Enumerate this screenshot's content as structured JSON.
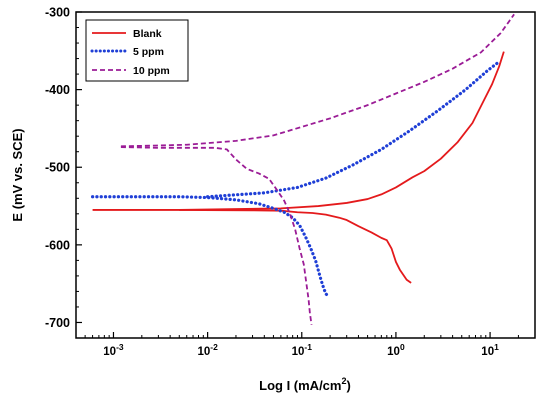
{
  "chart_data": {
    "type": "line",
    "title": "",
    "xlabel": "Log I (mA/cm",
    "xlabel_sup": "2",
    "xlabel_end": ")",
    "ylabel": "E (mV vs. SCE)",
    "x_scale": "log",
    "xlim": [
      0.0004,
      30
    ],
    "ylim": [
      -720,
      -300
    ],
    "x_ticks": [
      {
        "value": 0.001,
        "base": "10",
        "exp": "-3"
      },
      {
        "value": 0.01,
        "base": "10",
        "exp": "-2"
      },
      {
        "value": 0.1,
        "base": "10",
        "exp": "-1"
      },
      {
        "value": 1,
        "base": "10",
        "exp": "0"
      },
      {
        "value": 10,
        "base": "10",
        "exp": "1"
      }
    ],
    "y_ticks": [
      {
        "value": -300,
        "label": "-300"
      },
      {
        "value": -400,
        "label": "-400"
      },
      {
        "value": -500,
        "label": "-500"
      },
      {
        "value": -600,
        "label": "-600"
      },
      {
        "value": -700,
        "label": "-700"
      }
    ],
    "grid": false,
    "legend_position": "top-left",
    "series": [
      {
        "name": "Blank",
        "color": "#e41a1c",
        "style": "solid",
        "cathodic": [
          [
            0.0006,
            -555
          ],
          [
            0.005,
            -555
          ],
          [
            0.03,
            -555.5
          ],
          [
            0.06,
            -556
          ],
          [
            0.09,
            -558
          ],
          [
            0.13,
            -559
          ],
          [
            0.18,
            -561
          ],
          [
            0.25,
            -565
          ],
          [
            0.3,
            -568
          ],
          [
            0.4,
            -576
          ],
          [
            0.55,
            -584
          ],
          [
            0.7,
            -591
          ],
          [
            0.8,
            -594
          ],
          [
            0.9,
            -605
          ],
          [
            1.0,
            -622
          ],
          [
            1.1,
            -632
          ],
          [
            1.3,
            -645
          ],
          [
            1.45,
            -649
          ]
        ],
        "anodic": [
          [
            0.005,
            -555
          ],
          [
            0.06,
            -553
          ],
          [
            0.15,
            -550
          ],
          [
            0.3,
            -546
          ],
          [
            0.5,
            -541
          ],
          [
            0.7,
            -535
          ],
          [
            1.0,
            -526
          ],
          [
            1.5,
            -513
          ],
          [
            2.0,
            -505
          ],
          [
            3.0,
            -489
          ],
          [
            4.5,
            -468
          ],
          [
            6.5,
            -443
          ],
          [
            8.5,
            -415
          ],
          [
            10.5,
            -393
          ],
          [
            12.5,
            -370
          ],
          [
            14,
            -351
          ]
        ]
      },
      {
        "name": "5 ppm",
        "color": "#1f3fd6",
        "style": "dotted",
        "cathodic": [
          [
            0.0006,
            -538
          ],
          [
            0.005,
            -538
          ],
          [
            0.01,
            -539
          ],
          [
            0.02,
            -542
          ],
          [
            0.035,
            -547
          ],
          [
            0.05,
            -553
          ],
          [
            0.065,
            -558
          ],
          [
            0.08,
            -565
          ],
          [
            0.095,
            -575
          ],
          [
            0.11,
            -590
          ],
          [
            0.125,
            -605
          ],
          [
            0.14,
            -620
          ],
          [
            0.15,
            -633
          ],
          [
            0.16,
            -645
          ],
          [
            0.17,
            -655
          ],
          [
            0.18,
            -663
          ],
          [
            0.195,
            -667
          ]
        ],
        "anodic": [
          [
            0.01,
            -538
          ],
          [
            0.04,
            -533
          ],
          [
            0.09,
            -526
          ],
          [
            0.18,
            -514
          ],
          [
            0.35,
            -497
          ],
          [
            0.7,
            -477
          ],
          [
            1.4,
            -453
          ],
          [
            2.8,
            -427
          ],
          [
            5.5,
            -400
          ],
          [
            9.5,
            -375
          ],
          [
            12.5,
            -364
          ]
        ]
      },
      {
        "name": "10 ppm",
        "color": "#9b1c96",
        "style": "dashed",
        "cathodic": [
          [
            0.0012,
            -474
          ],
          [
            0.003,
            -475
          ],
          [
            0.008,
            -475
          ],
          [
            0.012,
            -475
          ],
          [
            0.016,
            -477
          ],
          [
            0.02,
            -490
          ],
          [
            0.026,
            -502
          ],
          [
            0.035,
            -508
          ],
          [
            0.045,
            -515
          ],
          [
            0.055,
            -530
          ],
          [
            0.065,
            -543
          ],
          [
            0.075,
            -560
          ],
          [
            0.085,
            -580
          ],
          [
            0.095,
            -605
          ],
          [
            0.105,
            -625
          ],
          [
            0.112,
            -650
          ],
          [
            0.118,
            -670
          ],
          [
            0.122,
            -688
          ],
          [
            0.127,
            -703
          ]
        ],
        "anodic": [
          [
            0.0012,
            -473
          ],
          [
            0.003,
            -472
          ],
          [
            0.006,
            -471
          ],
          [
            0.02,
            -466
          ],
          [
            0.05,
            -459
          ],
          [
            0.1,
            -448
          ],
          [
            0.2,
            -437
          ],
          [
            0.5,
            -420
          ],
          [
            1.0,
            -405
          ],
          [
            2.0,
            -390
          ],
          [
            4.0,
            -373
          ],
          [
            8.0,
            -352
          ],
          [
            13,
            -327
          ],
          [
            18,
            -303
          ]
        ]
      }
    ]
  }
}
